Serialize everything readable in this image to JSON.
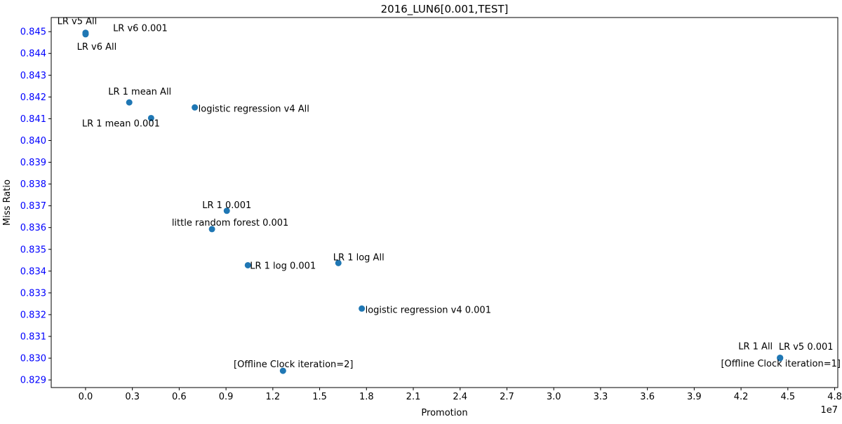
{
  "chart_data": {
    "type": "scatter",
    "title": "2016_LUN6[0.001,TEST]",
    "xlabel": "Promotion",
    "ylabel": "Miss Ratio",
    "x_offset_text": "1e7",
    "xlim": [
      -0.22,
      4.82
    ],
    "ylim": [
      0.82865,
      0.84565
    ],
    "x_ticks": [
      0.0,
      0.3,
      0.6,
      0.9,
      1.2,
      1.5,
      1.8,
      2.1,
      2.4,
      2.7,
      3.0,
      3.3,
      3.6,
      3.9,
      4.2,
      4.5,
      4.8
    ],
    "x_tick_labels": [
      "0.0",
      "0.3",
      "0.6",
      "0.9",
      "1.2",
      "1.5",
      "1.8",
      "2.1",
      "2.4",
      "2.7",
      "3.0",
      "3.3",
      "3.6",
      "3.9",
      "4.2",
      "4.5",
      "4.8"
    ],
    "y_ticks": [
      0.829,
      0.83,
      0.831,
      0.832,
      0.833,
      0.834,
      0.835,
      0.836,
      0.837,
      0.838,
      0.839,
      0.84,
      0.841,
      0.842,
      0.843,
      0.844,
      0.845
    ],
    "y_tick_labels": [
      "0.829",
      "0.830",
      "0.831",
      "0.832",
      "0.833",
      "0.834",
      "0.835",
      "0.836",
      "0.837",
      "0.838",
      "0.839",
      "0.840",
      "0.841",
      "0.842",
      "0.843",
      "0.844",
      "0.845"
    ],
    "grid": false,
    "colors": {
      "points": "#1f77b4",
      "y_tick_labels": "#0000ff",
      "text": "#000000"
    },
    "points": [
      {
        "x": 0.0,
        "y": 0.84495,
        "label": "LR v5 All"
      },
      {
        "x": 0.0,
        "y": 0.8449,
        "label": "LR v6 0.001"
      },
      {
        "x": 0.0,
        "y": 0.84488,
        "label": "LR v6 All"
      },
      {
        "x": 0.28,
        "y": 0.84175,
        "label": "LR 1 mean All"
      },
      {
        "x": 0.42,
        "y": 0.84103,
        "label": "LR 1 mean 0.001"
      },
      {
        "x": 0.7,
        "y": 0.84152,
        "label": "logistic regression v4 All"
      },
      {
        "x": 0.905,
        "y": 0.83677,
        "label": "LR 1 0.001"
      },
      {
        "x": 0.81,
        "y": 0.83593,
        "label": "little random forest 0.001"
      },
      {
        "x": 1.04,
        "y": 0.83427,
        "label": "LR 1 log 0.001"
      },
      {
        "x": 1.62,
        "y": 0.83437,
        "label": "LR 1 log All"
      },
      {
        "x": 1.77,
        "y": 0.83228,
        "label": "logistic regression v4 0.001"
      },
      {
        "x": 1.265,
        "y": 0.82942,
        "label": "[Offline Clock iteration=2]"
      },
      {
        "x": 4.45,
        "y": 0.83002,
        "label": "LR 1 All"
      },
      {
        "x": 4.45,
        "y": 0.83001,
        "label": "LR v5 0.001"
      },
      {
        "x": 4.45,
        "y": 0.83,
        "label": "[Offline Clock iteration=1]"
      }
    ]
  }
}
